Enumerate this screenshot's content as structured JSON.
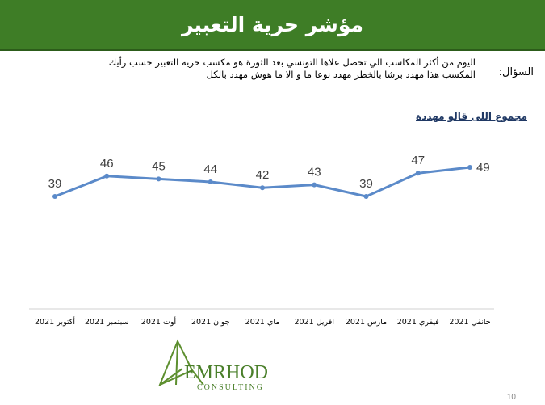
{
  "header": {
    "title": "مؤشر حرية التعبير"
  },
  "question": {
    "label": "السؤال:",
    "text": "اليوم من أكثر المكاسب الي تحصل علاها التونسي بعد الثورة هو مكسب حرية التعبير حسب رأيك المكسب هذا مهدد برشا بالخطر مهدد نوعا ما و الا ما هوش مهدد بالكل"
  },
  "chart_data": {
    "type": "line",
    "series_label": "مجموع اللى قالو مهددة",
    "categories": [
      "جانفي 2021",
      "فيفري 2021",
      "مارس 2021",
      "افريل 2021",
      "ماي 2021",
      "جوان 2021",
      "أوت 2021",
      "سبتمبر 2021",
      "أكتوبر 2021"
    ],
    "series": [
      {
        "values": [
          49,
          47,
          39,
          43,
          42,
          44,
          45,
          46,
          39
        ]
      }
    ],
    "ylim": [
      0,
      60
    ],
    "x_axis_direction": "right-to-left",
    "line_color": "#5b8ac9"
  },
  "logo": {
    "text": "EMRHOD",
    "subtext": "CONSULTING",
    "color": "#4a7f2a"
  },
  "page": {
    "number": "10"
  }
}
